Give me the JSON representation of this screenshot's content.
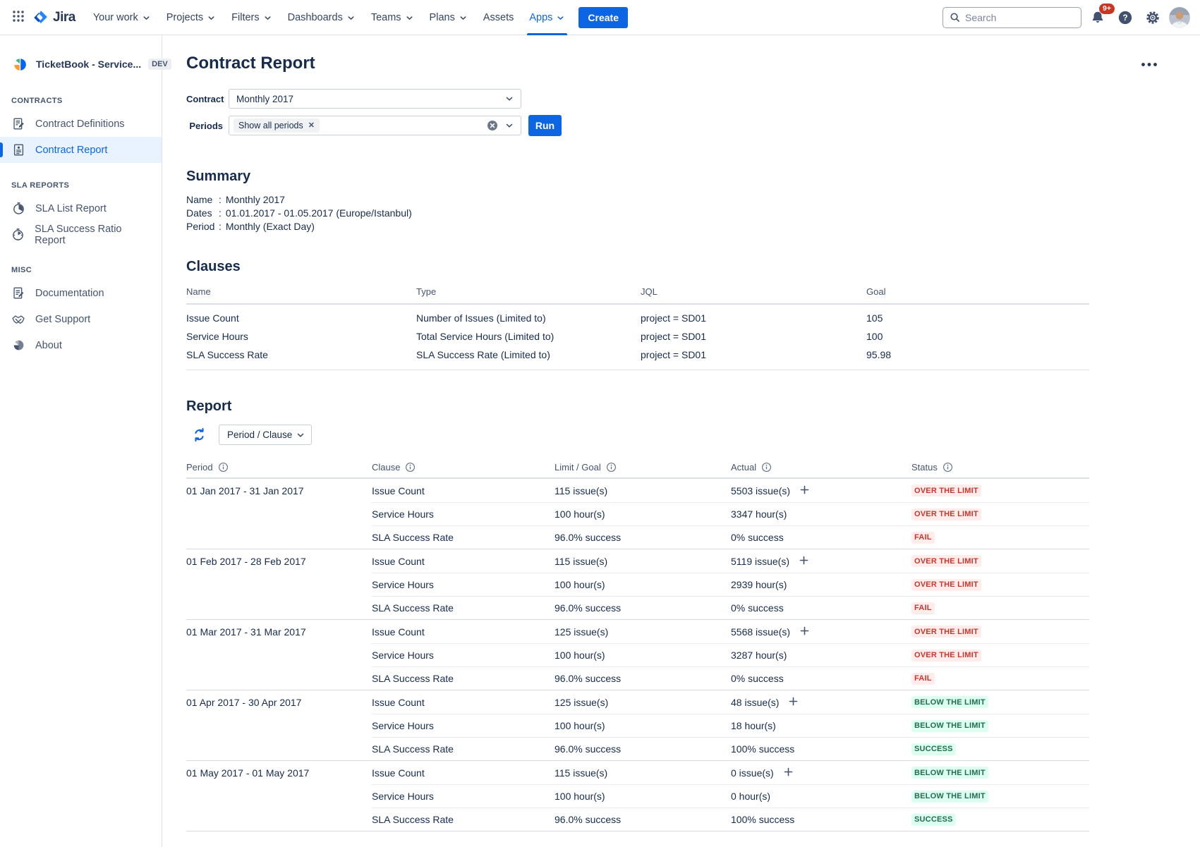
{
  "topnav": {
    "logo_text": "Jira",
    "items": [
      {
        "label": "Your work",
        "chevron": true,
        "active": false
      },
      {
        "label": "Projects",
        "chevron": true,
        "active": false
      },
      {
        "label": "Filters",
        "chevron": true,
        "active": false
      },
      {
        "label": "Dashboards",
        "chevron": true,
        "active": false
      },
      {
        "label": "Teams",
        "chevron": true,
        "active": false
      },
      {
        "label": "Plans",
        "chevron": true,
        "active": false
      },
      {
        "label": "Assets",
        "chevron": false,
        "active": false
      },
      {
        "label": "Apps",
        "chevron": true,
        "active": true
      }
    ],
    "create_label": "Create",
    "search_placeholder": "Search",
    "notification_count": "9+"
  },
  "sidebar": {
    "app_title": "TicketBook - Service...",
    "app_badge": "DEV",
    "sections": [
      {
        "title": "CONTRACTS",
        "items": [
          {
            "label": "Contract Definitions",
            "icon": "contract-definitions-icon",
            "selected": false
          },
          {
            "label": "Contract Report",
            "icon": "contract-report-icon",
            "selected": true
          }
        ]
      },
      {
        "title": "SLA REPORTS",
        "items": [
          {
            "label": "SLA List Report",
            "icon": "sla-list-report-icon",
            "selected": false
          },
          {
            "label": "SLA Success Ratio Report",
            "icon": "sla-success-ratio-report-icon",
            "selected": false
          }
        ]
      },
      {
        "title": "MISC",
        "items": [
          {
            "label": "Documentation",
            "icon": "documentation-icon",
            "selected": false
          },
          {
            "label": "Get Support",
            "icon": "get-support-icon",
            "selected": false
          },
          {
            "label": "About",
            "icon": "about-icon",
            "selected": false
          }
        ]
      }
    ]
  },
  "page": {
    "title": "Contract Report",
    "filters": {
      "contract_label": "Contract",
      "contract_value": "Monthly 2017",
      "periods_label": "Periods",
      "periods_tag": "Show all periods",
      "run_label": "Run"
    },
    "summary": {
      "heading": "Summary",
      "rows": [
        {
          "label": "Name",
          "value": "Monthly 2017"
        },
        {
          "label": "Dates",
          "value": "01.01.2017 - 01.05.2017 (Europe/Istanbul)"
        },
        {
          "label": "Period",
          "value": "Monthly (Exact Day)"
        }
      ]
    },
    "clauses": {
      "heading": "Clauses",
      "columns": [
        "Name",
        "Type",
        "JQL",
        "Goal"
      ],
      "rows": [
        [
          "Issue Count",
          "Number of Issues (Limited to)",
          "project = SD01",
          "105"
        ],
        [
          "Service Hours",
          "Total Service Hours (Limited to)",
          "project = SD01",
          "100"
        ],
        [
          "SLA Success Rate",
          "SLA Success Rate (Limited to)",
          "project = SD01",
          "95.98"
        ]
      ]
    },
    "report": {
      "heading": "Report",
      "group_by_value": "Period / Clause",
      "columns": [
        "Period",
        "Clause",
        "Limit / Goal",
        "Actual",
        "Status"
      ],
      "groups": [
        {
          "period": "01 Jan 2017 - 31 Jan 2017",
          "rows": [
            {
              "clause": "Issue Count",
              "limit": "115 issue(s)",
              "actual": "5503 issue(s)",
              "expand": true,
              "status": "OVER THE LIMIT",
              "status_type": "danger"
            },
            {
              "clause": "Service Hours",
              "limit": "100 hour(s)",
              "actual": "3347 hour(s)",
              "expand": false,
              "status": "OVER THE LIMIT",
              "status_type": "danger"
            },
            {
              "clause": "SLA Success Rate",
              "limit": "96.0% success",
              "actual": "0% success",
              "expand": false,
              "status": "FAIL",
              "status_type": "danger"
            }
          ]
        },
        {
          "period": "01 Feb 2017 - 28 Feb 2017",
          "rows": [
            {
              "clause": "Issue Count",
              "limit": "115 issue(s)",
              "actual": "5119 issue(s)",
              "expand": true,
              "status": "OVER THE LIMIT",
              "status_type": "danger"
            },
            {
              "clause": "Service Hours",
              "limit": "100 hour(s)",
              "actual": "2939 hour(s)",
              "expand": false,
              "status": "OVER THE LIMIT",
              "status_type": "danger"
            },
            {
              "clause": "SLA Success Rate",
              "limit": "96.0% success",
              "actual": "0% success",
              "expand": false,
              "status": "FAIL",
              "status_type": "danger"
            }
          ]
        },
        {
          "period": "01 Mar 2017 - 31 Mar 2017",
          "rows": [
            {
              "clause": "Issue Count",
              "limit": "125 issue(s)",
              "actual": "5568 issue(s)",
              "expand": true,
              "status": "OVER THE LIMIT",
              "status_type": "danger"
            },
            {
              "clause": "Service Hours",
              "limit": "100 hour(s)",
              "actual": "3287 hour(s)",
              "expand": false,
              "status": "OVER THE LIMIT",
              "status_type": "danger"
            },
            {
              "clause": "SLA Success Rate",
              "limit": "96.0% success",
              "actual": "0% success",
              "expand": false,
              "status": "FAIL",
              "status_type": "danger"
            }
          ]
        },
        {
          "period": "01 Apr 2017 - 30 Apr 2017",
          "rows": [
            {
              "clause": "Issue Count",
              "limit": "125 issue(s)",
              "actual": "48 issue(s)",
              "expand": true,
              "status": "BELOW THE LIMIT",
              "status_type": "success"
            },
            {
              "clause": "Service Hours",
              "limit": "100 hour(s)",
              "actual": "18 hour(s)",
              "expand": false,
              "status": "BELOW THE LIMIT",
              "status_type": "success"
            },
            {
              "clause": "SLA Success Rate",
              "limit": "96.0% success",
              "actual": "100% success",
              "expand": false,
              "status": "SUCCESS",
              "status_type": "success"
            }
          ]
        },
        {
          "period": "01 May 2017 - 01 May 2017",
          "rows": [
            {
              "clause": "Issue Count",
              "limit": "115 issue(s)",
              "actual": "0 issue(s)",
              "expand": true,
              "status": "BELOW THE LIMIT",
              "status_type": "success"
            },
            {
              "clause": "Service Hours",
              "limit": "100 hour(s)",
              "actual": "0 hour(s)",
              "expand": false,
              "status": "BELOW THE LIMIT",
              "status_type": "success"
            },
            {
              "clause": "SLA Success Rate",
              "limit": "96.0% success",
              "actual": "100% success",
              "expand": false,
              "status": "SUCCESS",
              "status_type": "success"
            }
          ]
        }
      ]
    }
  },
  "icons": {
    "app-switcher-icon": "3x3-dot-grid",
    "jira-logo": "jira-mark",
    "chevron-down-icon": "chevron-down",
    "search-icon": "magnifier",
    "notification-bell-icon": "bell",
    "help-icon": "question-circle",
    "settings-gear-icon": "gear",
    "user-avatar": "person-photo",
    "app-logo": "ticketbook-pie-mark",
    "contract-definitions-icon": "document-pen",
    "contract-report-icon": "document-lines",
    "sla-list-report-icon": "clock-pie",
    "sla-success-ratio-report-icon": "clock-pie-small",
    "documentation-icon": "document-pen",
    "get-support-icon": "handshake",
    "about-icon": "pie-chart",
    "refresh-icon": "circular-arrows",
    "clear-icon": "circle-x",
    "info-icon": "circle-i",
    "add-icon": "plus",
    "more-actions-icon": "ellipsis",
    "tag-remove-icon": "x"
  },
  "colors": {
    "accent": "#0C66E4",
    "text": "#172B4D",
    "text_secondary": "#44546F",
    "border": "#DCDFE4",
    "selected_bg": "#E9F2FF",
    "tag_bg": "#F1F2F4",
    "danger_bg": "#FFECEB",
    "danger_fg": "#C9372C",
    "success_bg": "#DCFFF1",
    "success_fg": "#216E4E",
    "notification_bg": "#CA3521"
  }
}
